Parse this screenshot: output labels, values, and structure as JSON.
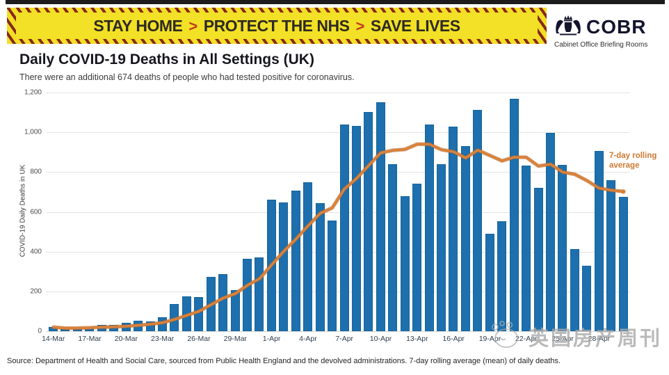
{
  "banner": {
    "segments": [
      "STAY HOME",
      "PROTECT THE NHS",
      "SAVE LIVES"
    ],
    "separator": ">",
    "bg_color": "#f2e126",
    "stripe_color": "#86291a",
    "text_color": "#2e2a20",
    "chevron_color": "#c23a1c"
  },
  "logo": {
    "wordmark": "COBR",
    "subtitle": "Cabinet Office Briefing Rooms",
    "color": "#14142e"
  },
  "header": {
    "title": "Daily COVID-19 Deaths in All Settings (UK)",
    "subtitle": "There were an additional 674 deaths of people who had tested positive for coronavirus."
  },
  "chart_data": {
    "type": "bar",
    "title": "Daily COVID-19 Deaths in All Settings (UK)",
    "ylabel": "COVID-19 Daily Deaths in UK",
    "xlabel": "",
    "ylim": [
      0,
      1200
    ],
    "ytick_values": [
      0,
      200,
      400,
      600,
      800,
      1000,
      1200
    ],
    "ytick_labels": [
      "0",
      "200",
      "400",
      "600",
      "800",
      "1,000",
      "1,200"
    ],
    "x_tick_every": 3,
    "grid": true,
    "legend_position": "right-inline-label",
    "bar_color": "#1d70ad",
    "line_color": "#d9813a",
    "rolling_window": 7,
    "series_label": "7-day rolling average",
    "categories": [
      "14-Mar",
      "15-Mar",
      "16-Mar",
      "17-Mar",
      "18-Mar",
      "19-Mar",
      "20-Mar",
      "21-Mar",
      "22-Mar",
      "23-Mar",
      "24-Mar",
      "25-Mar",
      "26-Mar",
      "27-Mar",
      "28-Mar",
      "29-Mar",
      "30-Mar",
      "31-Mar",
      "1-Apr",
      "2-Apr",
      "3-Apr",
      "4-Apr",
      "5-Apr",
      "6-Apr",
      "7-Apr",
      "8-Apr",
      "9-Apr",
      "10-Apr",
      "11-Apr",
      "12-Apr",
      "13-Apr",
      "14-Apr",
      "15-Apr",
      "16-Apr",
      "17-Apr",
      "18-Apr",
      "19-Apr",
      "20-Apr",
      "21-Apr",
      "22-Apr",
      "23-Apr",
      "24-Apr",
      "25-Apr",
      "26-Apr",
      "27-Apr",
      "28-Apr",
      "29-Apr",
      "30-Apr"
    ],
    "values": [
      20,
      10,
      16,
      22,
      33,
      30,
      41,
      53,
      49,
      70,
      138,
      175,
      172,
      274,
      286,
      205,
      363,
      372,
      662,
      648,
      705,
      750,
      645,
      558,
      1038,
      1032,
      1103,
      1150,
      838,
      680,
      740,
      1040,
      838,
      1030,
      932,
      1113,
      490,
      553,
      1170,
      833,
      720,
      998,
      835,
      414,
      329,
      906,
      760,
      674
    ]
  },
  "footer": {
    "source": "Source: Department of Health and Social Care, sourced from Public Health England and the devolved administrations. 7-day rolling average (mean) of daily deaths."
  },
  "watermark": {
    "text": "英国房产周刊"
  }
}
